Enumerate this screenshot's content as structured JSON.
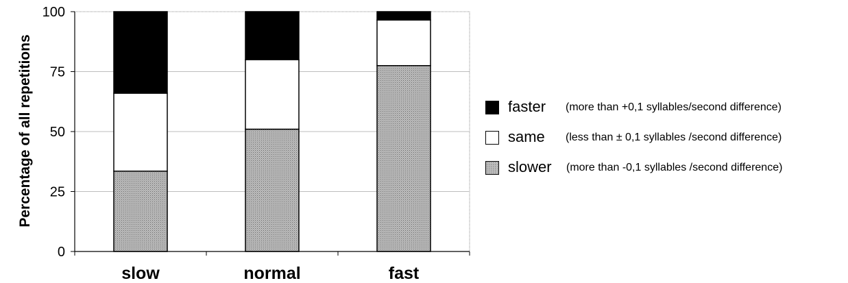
{
  "chart_data": {
    "type": "bar",
    "stacked": true,
    "title": "",
    "xlabel": "",
    "ylabel": "Percentage of all repetitions",
    "categories": [
      "slow",
      "normal",
      "fast"
    ],
    "ylim": [
      0,
      100
    ],
    "yticks": [
      "0",
      "25",
      "50",
      "75",
      "100"
    ],
    "grid": true,
    "legend_position": "right",
    "series": [
      {
        "name": "slower",
        "values": [
          33.5,
          51,
          77.5
        ],
        "color": "#b5b5b5",
        "pattern": "stipple"
      },
      {
        "name": "same",
        "values": [
          32.5,
          29,
          19
        ],
        "color": "#ffffff"
      },
      {
        "name": "faster",
        "values": [
          34,
          20,
          3.5
        ],
        "color": "#000000"
      }
    ],
    "legend": [
      {
        "name": "faster",
        "description": "(more than +0,1  syllables/second difference)",
        "color": "#000000"
      },
      {
        "name": "same",
        "description": "(less than ± 0,1  syllables /second difference)",
        "color": "#ffffff"
      },
      {
        "name": "slower",
        "description": "(more than -0,1 syllables /second difference)",
        "color": "#b5b5b5"
      }
    ]
  }
}
